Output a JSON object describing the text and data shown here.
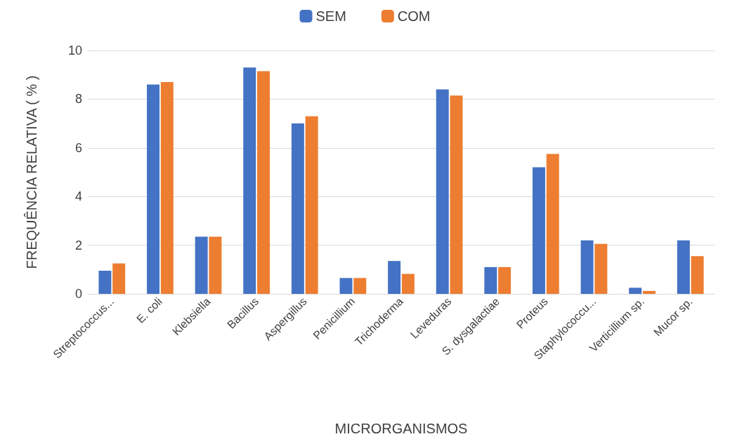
{
  "chart_data": {
    "type": "bar",
    "xlabel": "MICRORGANISMOS",
    "ylabel": "FREQUÊNCIA RELATIVA ( % )",
    "categories": [
      "Streptococcus...",
      "E. coli",
      "Klebsiella",
      "Bacillus",
      "Aspergillus",
      "Penicillium",
      "Trichoderma",
      "Leveduras",
      "S. dysgalactiae",
      "Proteus",
      "Staphylococcu...",
      "Verticillium sp.",
      "Mucor sp."
    ],
    "series": [
      {
        "name": "SEM",
        "color": "#4472c4",
        "values": [
          0.95,
          8.6,
          2.35,
          9.3,
          7.0,
          0.65,
          1.35,
          8.4,
          1.1,
          5.2,
          2.2,
          0.25,
          2.2
        ]
      },
      {
        "name": "COM",
        "color": "#ed7d31",
        "values": [
          1.25,
          8.7,
          2.35,
          9.15,
          7.3,
          0.65,
          0.82,
          8.15,
          1.1,
          5.75,
          2.05,
          0.12,
          1.55
        ]
      }
    ],
    "ylim": [
      0,
      10
    ],
    "yticks": [
      0,
      2,
      4,
      6,
      8,
      10
    ],
    "grid": "y",
    "legend": "top"
  }
}
